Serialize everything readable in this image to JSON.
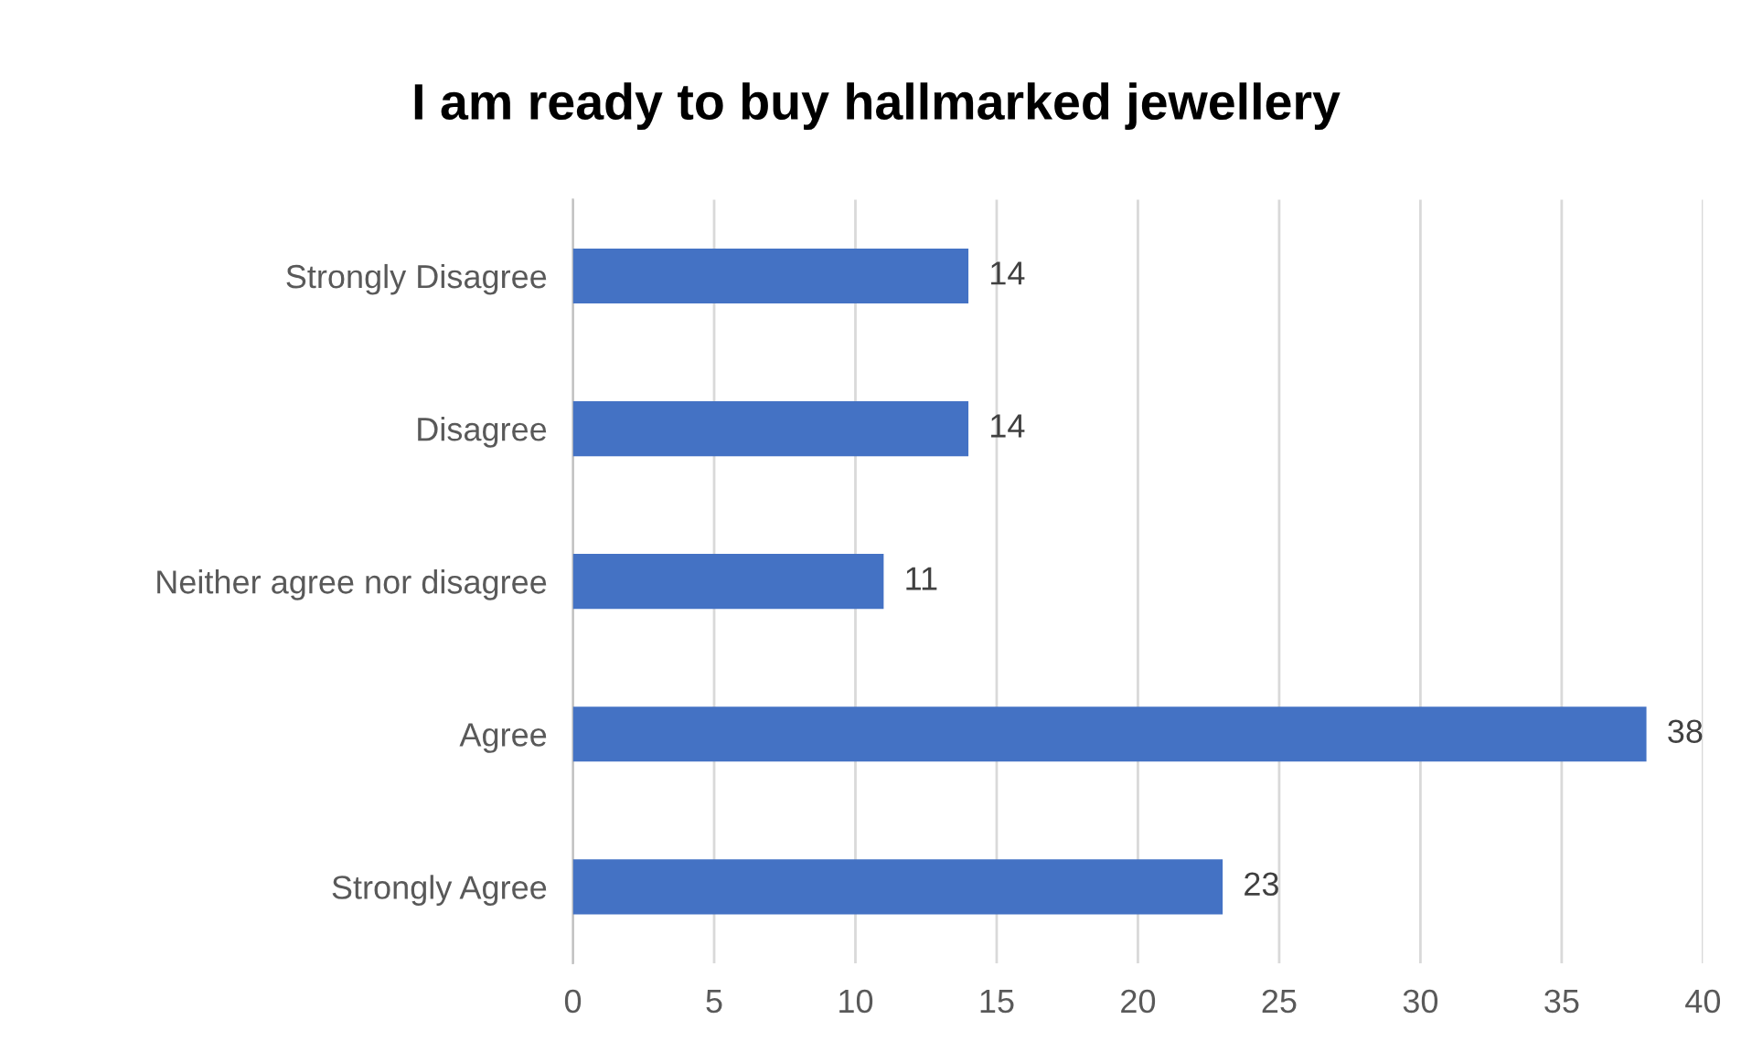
{
  "chart_data": {
    "type": "bar",
    "orientation": "horizontal",
    "title": "I am ready to buy hallmarked jewellery",
    "categories": [
      "Strongly Disagree",
      "Disagree",
      "Neither agree nor disagree",
      "Agree",
      "Strongly Agree"
    ],
    "values": [
      14,
      14,
      11,
      38,
      23
    ],
    "color": "#4472c4",
    "xlim": [
      0,
      40
    ],
    "xticks": [
      0,
      5,
      10,
      15,
      20,
      25,
      30,
      35,
      40
    ],
    "grid": "x",
    "data_labels": true
  }
}
